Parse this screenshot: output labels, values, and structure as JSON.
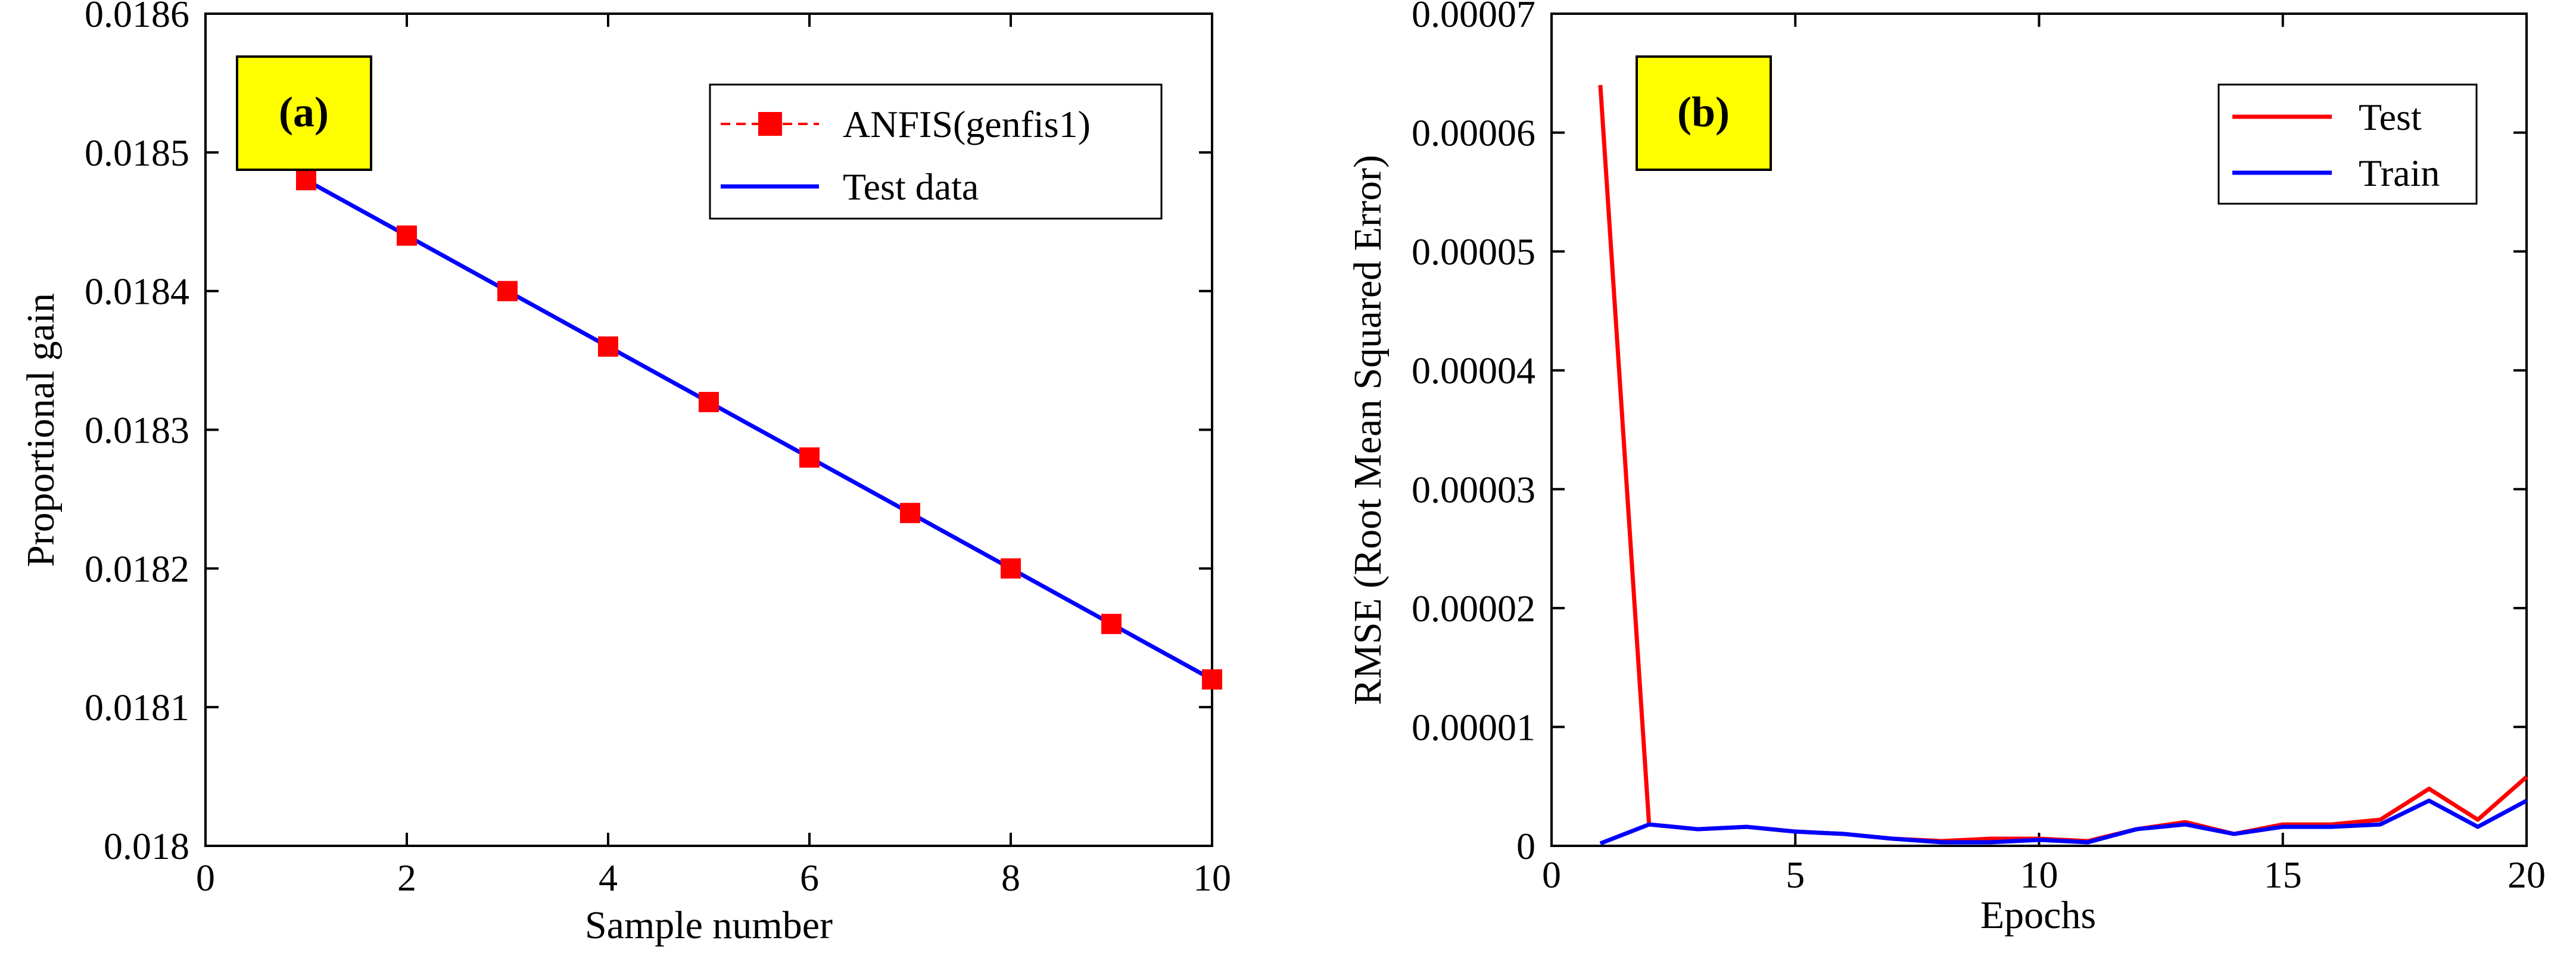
{
  "chart_data": [
    {
      "id": "a",
      "type": "line",
      "panel_label": "(a)",
      "xlabel": "Sample number",
      "ylabel": "Proportional gain",
      "xlim": [
        0,
        10
      ],
      "ylim": [
        0.018,
        0.0186
      ],
      "xticks": [
        0,
        2,
        4,
        6,
        8,
        10
      ],
      "xtick_labels": [
        "0",
        "2",
        "4",
        "6",
        "8",
        "10"
      ],
      "yticks": [
        0.018,
        0.0181,
        0.0182,
        0.0183,
        0.0184,
        0.0185,
        0.0186
      ],
      "ytick_labels": [
        "0.018",
        "0.0181",
        "0.0182",
        "0.0183",
        "0.0184",
        "0.0185",
        "0.0186"
      ],
      "grid": false,
      "legend_position": "top-right",
      "x": [
        1,
        2,
        3,
        4,
        5,
        6,
        7,
        8,
        9,
        10
      ],
      "series": [
        {
          "name": "ANFIS(genfis1)",
          "style": "dashed-square-markers",
          "color": "#ff0000",
          "values": [
            0.01848,
            0.01844,
            0.0184,
            0.01836,
            0.01832,
            0.01828,
            0.01824,
            0.0182,
            0.01816,
            0.01812
          ]
        },
        {
          "name": "Test data",
          "style": "solid",
          "color": "#0000ff",
          "values": [
            0.01848,
            0.01844,
            0.0184,
            0.01836,
            0.01832,
            0.01828,
            0.01824,
            0.0182,
            0.01816,
            0.01812
          ]
        }
      ]
    },
    {
      "id": "b",
      "type": "line",
      "panel_label": "(b)",
      "xlabel": "Epochs",
      "ylabel": "RMSE (Root Mean Squared Error)",
      "xlim": [
        0,
        20
      ],
      "ylim": [
        0,
        7e-05
      ],
      "xticks": [
        0,
        5,
        10,
        15,
        20
      ],
      "xtick_labels": [
        "0",
        "5",
        "10",
        "15",
        "20"
      ],
      "yticks": [
        0,
        1e-05,
        2e-05,
        3e-05,
        4e-05,
        5e-05,
        6e-05,
        7e-05
      ],
      "ytick_labels": [
        "0",
        "0.00001",
        "0.00002",
        "0.00003",
        "0.00004",
        "0.00005",
        "0.00006",
        "0.00007"
      ],
      "grid": false,
      "legend_position": "top-right",
      "x": [
        1,
        2,
        3,
        4,
        5,
        6,
        7,
        8,
        9,
        10,
        11,
        12,
        13,
        14,
        15,
        16,
        17,
        18,
        19,
        20
      ],
      "series": [
        {
          "name": "Test",
          "style": "solid",
          "color": "#ff0000",
          "values": [
            6.4e-05,
            1.8e-06,
            1.4e-06,
            1.6e-06,
            1.2e-06,
            1e-06,
            6e-07,
            4e-07,
            6e-07,
            6e-07,
            4e-07,
            1.4e-06,
            2e-06,
            1e-06,
            1.8e-06,
            1.8e-06,
            2.2e-06,
            4.8e-06,
            2.2e-06,
            5.8e-06
          ]
        },
        {
          "name": "Train",
          "style": "solid",
          "color": "#0000ff",
          "values": [
            2e-07,
            1.8e-06,
            1.4e-06,
            1.6e-06,
            1.2e-06,
            1e-06,
            6e-07,
            3e-07,
            3e-07,
            5e-07,
            3e-07,
            1.4e-06,
            1.8e-06,
            1e-06,
            1.6e-06,
            1.6e-06,
            1.8e-06,
            3.8e-06,
            1.6e-06,
            3.8e-06
          ]
        }
      ]
    }
  ]
}
